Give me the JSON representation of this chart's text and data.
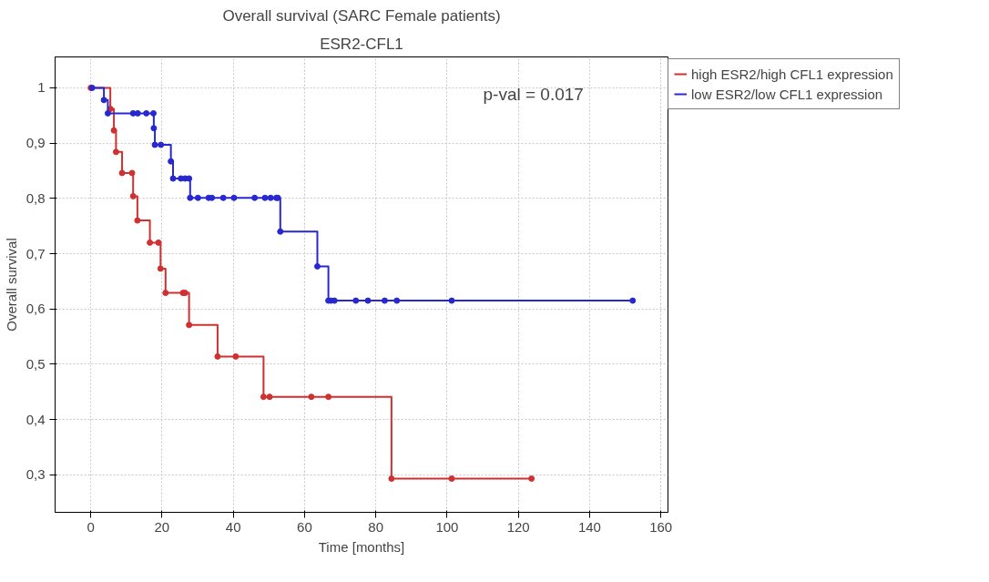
{
  "chart_data": {
    "type": "step",
    "title": "Overall survival (SARC Female patients)",
    "subtitle": "ESR2-CFL1",
    "xlabel": "Time [months]",
    "ylabel": "Overall survival",
    "annotations": [
      "p-val = 0.017"
    ],
    "series": [
      {
        "name": "high ESR2/high CFL1 expression",
        "color": "#d03030",
        "x": [
          0,
          5.5,
          6.5,
          7.1,
          8.8,
          11.6,
          11.9,
          13.1,
          16.6,
          19.0,
          19.6,
          21.0,
          25.9,
          26.5,
          27.6,
          35.6,
          40.7,
          48.5,
          50.2,
          61.9,
          66.7,
          84.4,
          101.3,
          123.7
        ],
        "values": [
          1,
          0.962,
          0.923,
          0.884,
          0.846,
          0.846,
          0.804,
          0.76,
          0.72,
          0.72,
          0.673,
          0.629,
          0.629,
          0.629,
          0.571,
          0.514,
          0.514,
          0.441,
          0.441,
          0.441,
          0.441,
          0.293,
          0.293,
          0.293
        ]
      },
      {
        "name": "low ESR2/low CFL1 expression",
        "color": "#2828d0",
        "x": [
          0.4,
          3.7,
          4.8,
          11.9,
          13.2,
          15.6,
          17.6,
          17.7,
          18.0,
          19.7,
          22.5,
          23.1,
          25.3,
          26.5,
          27.6,
          27.9,
          30.1,
          33.1,
          34.0,
          37.2,
          40.2,
          46.0,
          48.9,
          50.5,
          52.1,
          52.5,
          53.2,
          63.6,
          66.7,
          67.4,
          68.4,
          74.4,
          77.8,
          82.5,
          85.9,
          101.3,
          152.1
        ],
        "values": [
          1,
          0.978,
          0.954,
          0.954,
          0.954,
          0.954,
          0.954,
          0.927,
          0.897,
          0.897,
          0.867,
          0.836,
          0.836,
          0.836,
          0.836,
          0.801,
          0.801,
          0.801,
          0.801,
          0.801,
          0.801,
          0.801,
          0.801,
          0.801,
          0.801,
          0.801,
          0.74,
          0.677,
          0.615,
          0.615,
          0.615,
          0.615,
          0.615,
          0.615,
          0.615,
          0.615,
          0.615
        ]
      }
    ],
    "xlim": [
      -10,
      162
    ],
    "ylim": [
      0.232,
      1.056
    ],
    "xticks": [
      0,
      20,
      40,
      60,
      80,
      100,
      120,
      140,
      160
    ],
    "yticks": [
      {
        "value": 0.3,
        "label": "0,3"
      },
      {
        "value": 0.4,
        "label": "0,4"
      },
      {
        "value": 0.5,
        "label": "0,5"
      },
      {
        "value": 0.6,
        "label": "0,6"
      },
      {
        "value": 0.7,
        "label": "0,7"
      },
      {
        "value": 0.8,
        "label": "0,8"
      },
      {
        "value": 0.9,
        "label": "0,9"
      },
      1
    ],
    "grid": true,
    "legend": "top right",
    "marker": "circle",
    "line_style": "solid"
  }
}
